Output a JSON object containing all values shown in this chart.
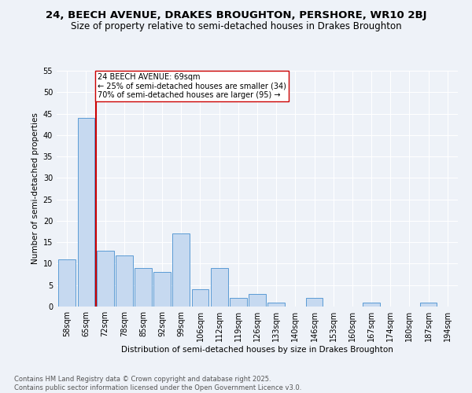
{
  "title": "24, BEECH AVENUE, DRAKES BROUGHTON, PERSHORE, WR10 2BJ",
  "subtitle": "Size of property relative to semi-detached houses in Drakes Broughton",
  "xlabel": "Distribution of semi-detached houses by size in Drakes Broughton",
  "ylabel": "Number of semi-detached properties",
  "categories": [
    "58sqm",
    "65sqm",
    "72sqm",
    "78sqm",
    "85sqm",
    "92sqm",
    "99sqm",
    "106sqm",
    "112sqm",
    "119sqm",
    "126sqm",
    "133sqm",
    "140sqm",
    "146sqm",
    "153sqm",
    "160sqm",
    "167sqm",
    "174sqm",
    "180sqm",
    "187sqm",
    "194sqm"
  ],
  "values": [
    11,
    44,
    13,
    12,
    9,
    8,
    17,
    4,
    9,
    2,
    3,
    1,
    0,
    2,
    0,
    0,
    1,
    0,
    0,
    1,
    0
  ],
  "bar_color": "#c6d9f0",
  "bar_edge_color": "#5b9bd5",
  "vline_x": 1.5,
  "vline_color": "#cc0000",
  "annotation_title": "24 BEECH AVENUE: 69sqm",
  "annotation_line1": "← 25% of semi-detached houses are smaller (34)",
  "annotation_line2": "70% of semi-detached houses are larger (95) →",
  "annotation_box_color": "#ffffff",
  "annotation_box_edge": "#cc0000",
  "ylim": [
    0,
    55
  ],
  "yticks": [
    0,
    5,
    10,
    15,
    20,
    25,
    30,
    35,
    40,
    45,
    50,
    55
  ],
  "footnote": "Contains HM Land Registry data © Crown copyright and database right 2025.\nContains public sector information licensed under the Open Government Licence v3.0.",
  "bg_color": "#eef2f8",
  "grid_color": "#ffffff",
  "title_fontsize": 9.5,
  "subtitle_fontsize": 8.5,
  "axis_label_fontsize": 7.5,
  "tick_fontsize": 7,
  "footnote_fontsize": 6,
  "annotation_fontsize": 7
}
